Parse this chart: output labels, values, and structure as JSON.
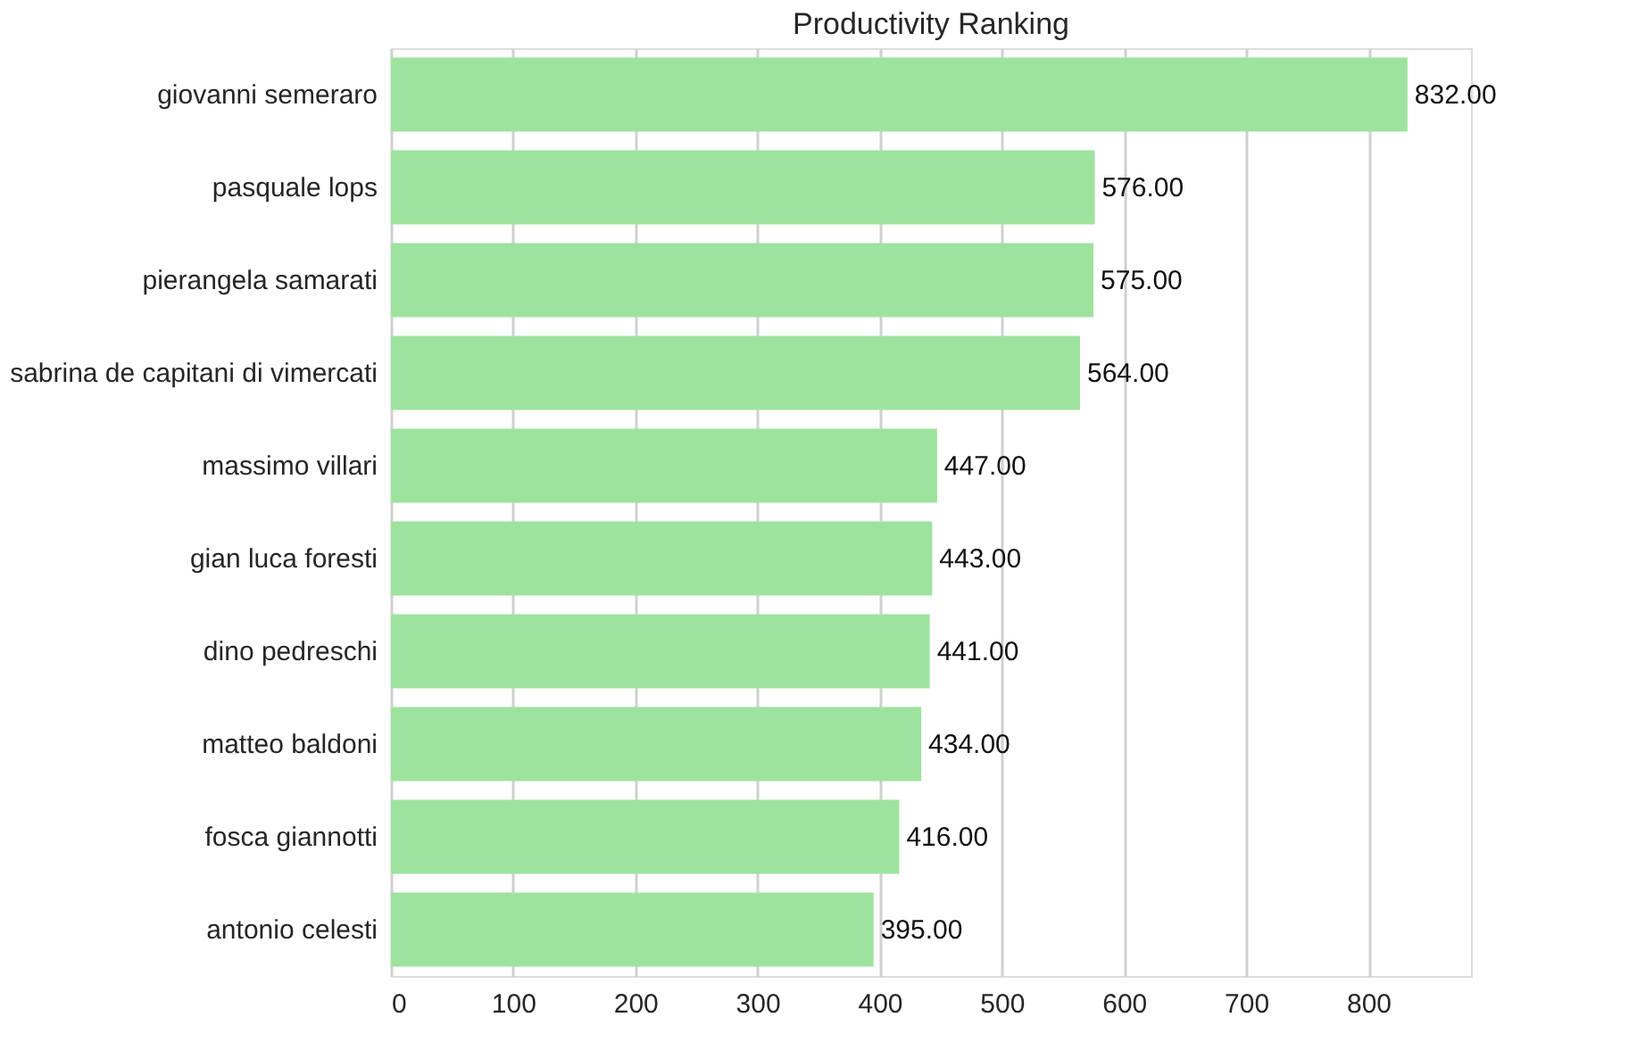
{
  "chart_data": {
    "type": "bar",
    "orientation": "horizontal",
    "title": "Productivity Ranking",
    "categories": [
      "giovanni semeraro",
      "pasquale lops",
      "pierangela samarati",
      "sabrina de capitani di vimercati",
      "massimo villari",
      "gian luca foresti",
      "dino pedreschi",
      "matteo baldoni",
      "fosca giannotti",
      "antonio celesti"
    ],
    "values": [
      832,
      576,
      575,
      564,
      447,
      443,
      441,
      434,
      416,
      395
    ],
    "color": "#9de39d",
    "xlim": [
      0,
      884
    ],
    "xticks": [
      0,
      100,
      200,
      300,
      400,
      500,
      600,
      700,
      800
    ],
    "value_labels": [
      "832.00",
      "576.00",
      "575.00",
      "564.00",
      "447.00",
      "443.00",
      "441.00",
      "434.00",
      "416.00",
      "395.00"
    ],
    "grid": "x"
  }
}
